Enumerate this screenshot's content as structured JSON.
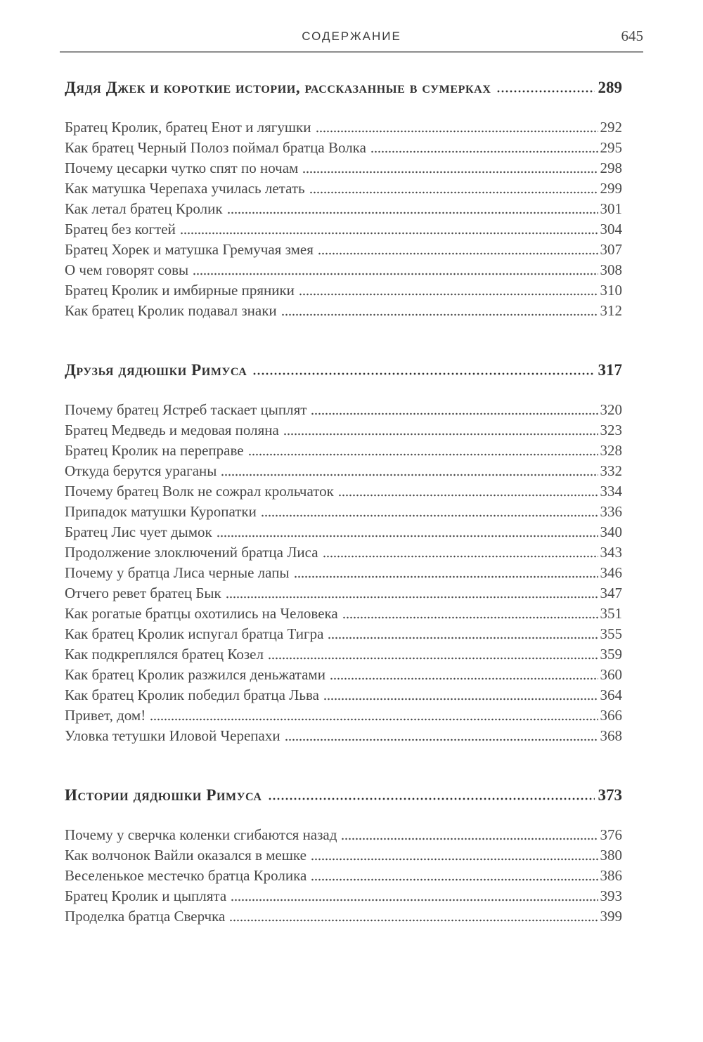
{
  "header": {
    "title": "СОДЕРЖАНИЕ",
    "page_number": "645"
  },
  "colors": {
    "ink": "#474747",
    "heading_ink": "#303030",
    "rule": "#8e8e8e",
    "background": "#ffffff"
  },
  "sections": [
    {
      "title": "Дядя Джек и короткие истории, рассказанные в сумерках",
      "page": "289",
      "entries": [
        {
          "title": "Братец Кролик, братец Енот и лягушки",
          "page": "292"
        },
        {
          "title": "Как братец Черный Полоз поймал братца Волка",
          "page": "295"
        },
        {
          "title": "Почему цесарки чутко спят по ночам",
          "page": "298"
        },
        {
          "title": "Как матушка Черепаха училась летать",
          "page": "299"
        },
        {
          "title": "Как летал братец Кролик",
          "page": "301"
        },
        {
          "title": "Братец без когтей",
          "page": "304"
        },
        {
          "title": "Братец Хорек и матушка Гремучая змея",
          "page": "307"
        },
        {
          "title": "О чем говорят совы",
          "page": "308"
        },
        {
          "title": "Братец Кролик и имбирные пряники",
          "page": "310"
        },
        {
          "title": "Как братец Кролик подавал знаки",
          "page": "312"
        }
      ]
    },
    {
      "title": "Друзья дядюшки Римуса",
      "page": "317",
      "entries": [
        {
          "title": "Почему братец Ястреб таскает цыплят",
          "page": "320"
        },
        {
          "title": "Братец Медведь и медовая поляна",
          "page": "323"
        },
        {
          "title": "Братец Кролик на переправе",
          "page": "328"
        },
        {
          "title": "Откуда берутся ураганы",
          "page": "332"
        },
        {
          "title": "Почему братец Волк не сожрал крольчаток",
          "page": "334"
        },
        {
          "title": "Припадок матушки Куропатки",
          "page": "336"
        },
        {
          "title": "Братец Лис чует дымок",
          "page": "340"
        },
        {
          "title": "Продолжение злоключений братца Лиса",
          "page": "343"
        },
        {
          "title": "Почему у братца Лиса черные лапы",
          "page": "346"
        },
        {
          "title": "Отчего ревет братец Бык",
          "page": "347"
        },
        {
          "title": "Как рогатые братцы охотились на Человека",
          "page": "351"
        },
        {
          "title": "Как братец Кролик испугал братца Тигра",
          "page": "355"
        },
        {
          "title": "Как подкреплялся братец Козел",
          "page": "359"
        },
        {
          "title": "Как братец Кролик разжился деньжатами",
          "page": "360"
        },
        {
          "title": "Как братец Кролик победил братца Льва",
          "page": "364"
        },
        {
          "title": "Привет, дом!",
          "page": "366"
        },
        {
          "title": "Уловка тетушки Иловой Черепахи",
          "page": "368"
        }
      ]
    },
    {
      "title": "Истории дядюшки Римуса",
      "page": "373",
      "entries": [
        {
          "title": "Почему у сверчка коленки сгибаются назад",
          "page": "376"
        },
        {
          "title": "Как волчонок Вайли оказался в мешке",
          "page": "380"
        },
        {
          "title": "Веселенькое местечко братца Кролика",
          "page": "386"
        },
        {
          "title": "Братец Кролик и цыплята",
          "page": "393"
        },
        {
          "title": "Проделка братца Сверчка",
          "page": "399"
        }
      ]
    }
  ]
}
